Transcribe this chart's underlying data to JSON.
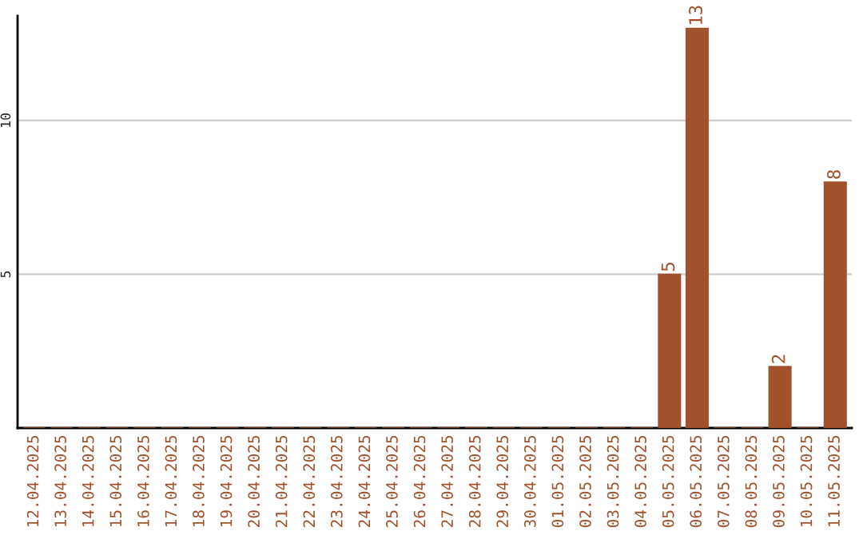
{
  "chart_data": {
    "type": "bar",
    "categories": [
      "12.04.2025",
      "13.04.2025",
      "14.04.2025",
      "15.04.2025",
      "16.04.2025",
      "17.04.2025",
      "18.04.2025",
      "19.04.2025",
      "20.04.2025",
      "21.04.2025",
      "22.04.2025",
      "23.04.2025",
      "24.04.2025",
      "25.04.2025",
      "26.04.2025",
      "27.04.2025",
      "28.04.2025",
      "29.04.2025",
      "30.04.2025",
      "01.05.2025",
      "02.05.2025",
      "03.05.2025",
      "04.05.2025",
      "05.05.2025",
      "06.05.2025",
      "07.05.2025",
      "08.05.2025",
      "09.05.2025",
      "10.05.2025",
      "11.05.2025"
    ],
    "values": [
      0,
      0,
      0,
      0,
      0,
      0,
      0,
      0,
      0,
      0,
      0,
      0,
      0,
      0,
      0,
      0,
      0,
      0,
      0,
      0,
      0,
      0,
      0,
      5,
      13,
      0,
      0,
      2,
      0,
      8
    ],
    "value_labels": [
      null,
      null,
      null,
      null,
      null,
      null,
      null,
      null,
      null,
      null,
      null,
      null,
      null,
      null,
      null,
      null,
      null,
      null,
      null,
      null,
      null,
      null,
      null,
      "5",
      "13",
      null,
      null,
      "2",
      null,
      "8"
    ],
    "color": "#a0522d",
    "ylim": [
      0,
      13.4
    ],
    "yticks": [
      5,
      10
    ],
    "grid": "y",
    "legend": false
  }
}
